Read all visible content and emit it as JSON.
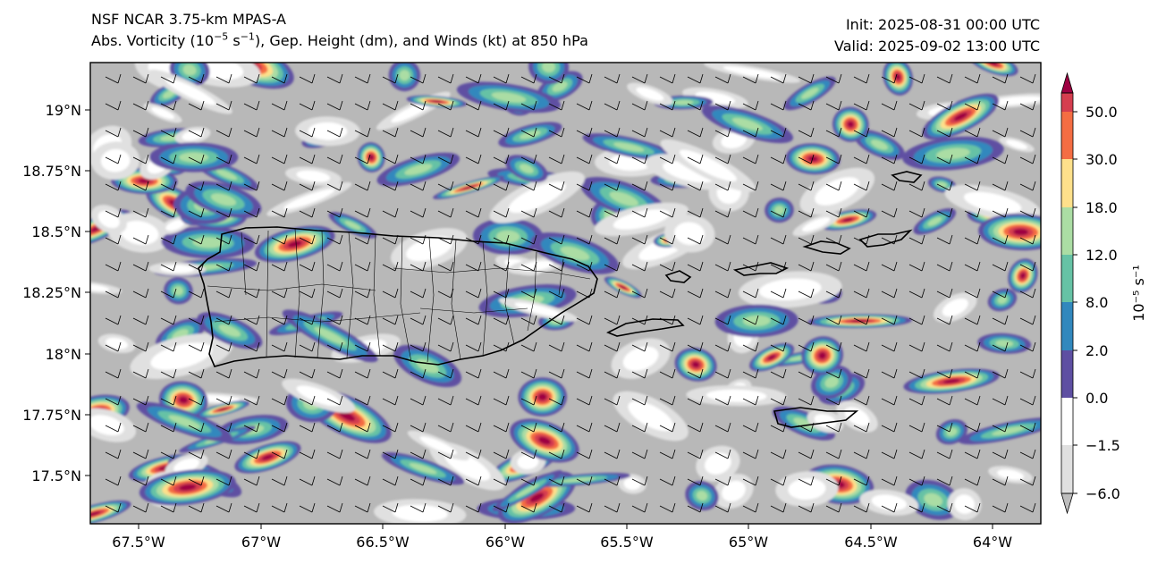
{
  "title": {
    "model": "NSF NCAR 3.75-km MPAS-A",
    "field_pre": "Abs. Vorticity (10",
    "field_exp1": "−5",
    "field_mid": " s",
    "field_exp2": "−1",
    "field_post": "), Gep. Height (dm), and Winds (kt) at 850 hPa",
    "init": "Init: 2025-08-31 00:00 UTC",
    "valid": "Valid: 2025-09-02 13:00 UTC"
  },
  "axes": {
    "lon_ticks": [
      "67.5°W",
      "67°W",
      "66.5°W",
      "66°W",
      "65.5°W",
      "65°W",
      "64.5°W",
      "64°W"
    ],
    "lat_ticks": [
      "19°N",
      "18.75°N",
      "18.5°N",
      "18.25°N",
      "18°N",
      "17.75°N",
      "17.5°N"
    ]
  },
  "colorbar": {
    "ticks": [
      "50.0",
      "30.0",
      "18.0",
      "12.0",
      "8.0",
      "2.0",
      "0.0",
      "−1.5",
      "−6.0"
    ],
    "label": "10⁻⁵ s⁻¹",
    "levels": [
      -6.0,
      -1.5,
      0.0,
      2.0,
      8.0,
      12.0,
      18.0,
      30.0,
      50.0
    ],
    "colors": [
      "#bdbdbd",
      "#e0e0e0",
      "#ffffff",
      "#5e4fa2",
      "#3288bd",
      "#66c2a5",
      "#abdda4",
      "#fee08b",
      "#f46d43",
      "#d53e4f",
      "#9e0142"
    ]
  },
  "map_colors": {
    "background_gray": "#b8b8b8",
    "coastline": "#000000",
    "barb": "#000000"
  }
}
